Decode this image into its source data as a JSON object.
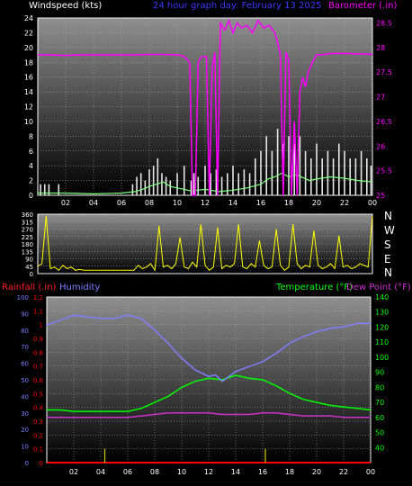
{
  "header": {
    "windspeed_label": "Windspeed (kts)",
    "graph_day": "24 hour graph day:  February 13 2025",
    "barometer_label": "Barometer (.in)"
  },
  "legend_bottom": {
    "rainfall_label": "Rainfall (.in)",
    "humidity_label": "Humidity",
    "temperature_label": "Temperature (°F)",
    "dewpoint_label": "Dew Point (°F)"
  },
  "compass": [
    "N",
    "W",
    "S",
    "E",
    "N"
  ],
  "colors": {
    "windspeed": "#ffffff",
    "windgust": "#e6e6e6",
    "windavg": "#7dff7d",
    "barometer": "#ff00ff",
    "direction": "#ffff00",
    "humidity": "#7f7fff",
    "temperature": "#00ff00",
    "dewpoint": "#cc33cc",
    "rainfall": "#ff0000",
    "left_axis": "#ffffff",
    "right_axis_baro": "#ff00ff",
    "right_axis_temp": "#00ff00",
    "left_axis_hum": "#7f7fff",
    "left_axis_rain": "#ff0000"
  },
  "chart_data": [
    {
      "type": "line",
      "name": "wind-and-barometer",
      "x_ticks": [
        "02",
        "04",
        "06",
        "08",
        "10",
        "12",
        "14",
        "16",
        "18",
        "20",
        "22",
        "00"
      ],
      "xlim": [
        0,
        24
      ],
      "left_axis": {
        "title": "Windspeed (kts)",
        "ticks": [
          0,
          2,
          4,
          6,
          8,
          10,
          12,
          14,
          16,
          18,
          20,
          22,
          24
        ],
        "ylim": [
          0,
          24
        ]
      },
      "right_axis": {
        "title": "Barometer (.in)",
        "ticks": [
          "25",
          "25.5",
          "26",
          "26.5",
          "27",
          "27.5",
          "28",
          "28.5"
        ],
        "ylim": [
          25,
          28.6
        ]
      },
      "series": [
        {
          "key": "barometer",
          "axis": "right",
          "x": [
            0,
            1,
            2,
            3,
            4,
            5,
            6,
            7,
            8,
            9,
            10,
            10.5,
            10.9,
            11.1,
            11.3,
            11.5,
            11.7,
            11.9,
            12.1,
            12.3,
            12.5,
            12.7,
            12.9,
            13.1,
            13.4,
            13.7,
            14.0,
            14.3,
            14.6,
            15.0,
            15.4,
            15.8,
            16.2,
            16.6,
            17.0,
            17.2,
            17.4,
            17.6,
            17.8,
            18.0,
            18.2,
            18.4,
            18.6,
            18.8,
            19.0,
            19.2,
            19.4,
            19.7,
            20.0,
            20.5,
            21,
            22,
            23,
            24
          ],
          "values": [
            27.85,
            27.85,
            27.84,
            27.85,
            27.85,
            27.85,
            27.85,
            27.85,
            27.86,
            27.86,
            27.85,
            27.82,
            27.7,
            25.0,
            25.0,
            27.7,
            27.8,
            27.82,
            27.82,
            25.0,
            27.6,
            27.9,
            25.0,
            28.5,
            28.35,
            28.55,
            28.3,
            28.5,
            28.4,
            28.45,
            28.3,
            28.55,
            28.4,
            28.45,
            28.3,
            28.1,
            27.85,
            25.0,
            27.9,
            27.75,
            25.0,
            26.5,
            25.0,
            27.1,
            27.4,
            27.2,
            27.5,
            27.7,
            27.85,
            27.86,
            27.88,
            27.88,
            27.87,
            27.86
          ]
        },
        {
          "key": "windspeed",
          "axis": "left",
          "x": [
            0.2,
            0.5,
            0.8,
            1.5,
            6.8,
            7.1,
            7.4,
            7.7,
            8.0,
            8.3,
            8.6,
            8.9,
            9.2,
            9.5,
            10.0,
            10.5,
            11.0,
            11.2,
            11.5,
            12.0,
            12.4,
            12.8,
            13.2,
            13.6,
            14.0,
            14.4,
            14.8,
            15.2,
            15.6,
            16.0,
            16.4,
            16.8,
            17.2,
            17.6,
            18.0,
            18.4,
            18.8,
            19.2,
            19.6,
            20.0,
            20.4,
            20.8,
            21.2,
            21.6,
            22.0,
            22.4,
            22.8,
            23.2,
            23.6,
            23.9
          ],
          "values": [
            1.5,
            1.5,
            1.5,
            1.5,
            1.5,
            2.5,
            3,
            2,
            3.5,
            4,
            5,
            3,
            2.5,
            2,
            3,
            4,
            2,
            3,
            2.5,
            4,
            3,
            3.5,
            2.5,
            3,
            4,
            3,
            3.5,
            3,
            5,
            6,
            8,
            6,
            9,
            7,
            8,
            7,
            8,
            6,
            5,
            7,
            5,
            6,
            5,
            7,
            6,
            5,
            5,
            6,
            5,
            4
          ]
        },
        {
          "key": "windavg",
          "axis": "left",
          "x": [
            0,
            2,
            4,
            6,
            7,
            7.5,
            8,
            8.5,
            9,
            9.5,
            10,
            11,
            12,
            13,
            14,
            15,
            16,
            16.5,
            17,
            17.5,
            18,
            18.5,
            19,
            19.5,
            20,
            21,
            22,
            23,
            24
          ],
          "values": [
            0.3,
            0.3,
            0.2,
            0.3,
            0.5,
            0.8,
            1.2,
            1.5,
            1.8,
            1.2,
            1.0,
            0.6,
            0.8,
            0.5,
            0.7,
            1.0,
            1.5,
            2.2,
            2.5,
            3.0,
            2.5,
            2.8,
            2.4,
            2.0,
            2.2,
            2.5,
            2.3,
            2.0,
            1.8
          ]
        }
      ]
    },
    {
      "type": "line",
      "name": "wind-direction",
      "xlim": [
        0,
        24
      ],
      "left_axis": {
        "ticks": [
          0,
          45,
          90,
          135,
          180,
          225,
          270,
          315,
          360
        ],
        "ylim": [
          0,
          360
        ]
      },
      "series": [
        {
          "key": "direction",
          "x": [
            0.0,
            0.3,
            0.6,
            0.9,
            1.2,
            1.5,
            1.8,
            2.1,
            2.4,
            2.7,
            3.0,
            3.3,
            3.6,
            3.9,
            4.2,
            4.5,
            4.8,
            5.1,
            5.4,
            5.7,
            6.0,
            6.3,
            6.6,
            6.9,
            7.2,
            7.5,
            7.8,
            8.1,
            8.4,
            8.7,
            9.0,
            9.3,
            9.6,
            9.9,
            10.2,
            10.5,
            10.8,
            11.1,
            11.4,
            11.7,
            12.0,
            12.3,
            12.6,
            12.9,
            13.2,
            13.5,
            13.8,
            14.1,
            14.4,
            14.7,
            15.0,
            15.3,
            15.6,
            15.9,
            16.2,
            16.5,
            16.8,
            17.1,
            17.4,
            17.7,
            18.0,
            18.3,
            18.6,
            18.9,
            19.2,
            19.5,
            19.8,
            20.1,
            20.4,
            20.7,
            21.0,
            21.3,
            21.6,
            21.9,
            22.2,
            22.5,
            22.8,
            23.1,
            23.4,
            23.7,
            24.0
          ],
          "values": [
            45,
            60,
            350,
            30,
            40,
            20,
            50,
            30,
            40,
            20,
            25,
            20,
            20,
            20,
            20,
            20,
            20,
            20,
            20,
            20,
            20,
            20,
            20,
            20,
            50,
            30,
            40,
            60,
            20,
            290,
            40,
            50,
            30,
            60,
            220,
            40,
            30,
            70,
            40,
            300,
            50,
            20,
            40,
            280,
            30,
            50,
            40,
            60,
            300,
            40,
            30,
            60,
            40,
            200,
            50,
            30,
            40,
            270,
            50,
            20,
            40,
            300,
            60,
            30,
            50,
            40,
            260,
            50,
            30,
            40,
            60,
            30,
            230,
            40,
            50,
            30,
            40,
            60,
            50,
            40,
            350
          ]
        }
      ]
    },
    {
      "type": "line",
      "name": "temperature-humidity-rain",
      "x_ticks": [
        "02",
        "04",
        "06",
        "08",
        "10",
        "12",
        "14",
        "16",
        "18",
        "20",
        "22",
        "00"
      ],
      "xlim": [
        0,
        24
      ],
      "left_axis_humidity": {
        "title": "Humidity",
        "ticks": [
          0,
          10,
          20,
          30,
          40,
          50,
          60,
          70,
          80,
          90,
          100
        ],
        "ylim": [
          0,
          100
        ]
      },
      "left_axis_rain": {
        "title": "Rainfall (.in)",
        "ticks": [
          "0",
          "0.1",
          "0.2",
          "0.3",
          "0.4",
          "0.5",
          "0.6",
          "0.7",
          "0.8",
          "0.9",
          "1",
          "1.1",
          "1.2"
        ],
        "ylim": [
          0,
          1.2
        ]
      },
      "right_axis": {
        "title": "Temperature (°F)",
        "ticks": [
          40,
          50,
          60,
          70,
          80,
          90,
          100,
          110,
          120,
          130,
          140
        ],
        "ylim": [
          30,
          140
        ]
      },
      "series": [
        {
          "key": "humidity",
          "axis": "humidity",
          "x": [
            0,
            1,
            2,
            3,
            4,
            5,
            6,
            7,
            8,
            9,
            10,
            11,
            12,
            12.5,
            13,
            13.5,
            14,
            15,
            16,
            17,
            18,
            19,
            20,
            21,
            22,
            23,
            24
          ],
          "values": [
            83,
            86,
            89,
            88,
            87,
            87,
            89,
            87,
            80,
            72,
            63,
            56,
            52,
            53,
            49,
            52,
            55,
            58,
            61,
            66,
            72,
            76,
            79,
            81,
            82,
            84,
            84
          ]
        },
        {
          "key": "temperature",
          "axis": "temperature",
          "x": [
            0,
            1,
            2,
            3,
            4,
            5,
            6,
            7,
            8,
            9,
            10,
            11,
            12,
            13,
            14,
            15,
            16,
            17,
            18,
            19,
            20,
            21,
            22,
            23,
            24
          ],
          "values": [
            65,
            65,
            64,
            64,
            64,
            64,
            64,
            66,
            70,
            74,
            80,
            84,
            86,
            85,
            88,
            86,
            85,
            81,
            76,
            72,
            70,
            68,
            67,
            66,
            65
          ]
        },
        {
          "key": "dewpoint",
          "axis": "temperature",
          "x": [
            0,
            1,
            2,
            3,
            4,
            5,
            6,
            7,
            8,
            9,
            10,
            11,
            12,
            13,
            14,
            15,
            16,
            17,
            18,
            19,
            20,
            21,
            22,
            23,
            24
          ],
          "values": [
            60,
            60,
            60,
            60,
            60,
            60,
            60,
            61,
            62,
            63,
            63,
            63,
            63,
            62,
            62,
            62,
            63,
            63,
            62,
            61,
            61,
            61,
            60,
            60,
            60
          ]
        },
        {
          "key": "rainfall",
          "axis": "rain",
          "x": [
            0,
            24
          ],
          "values": [
            0,
            0
          ]
        }
      ],
      "rain_spikes": [
        {
          "x": 4.3,
          "value": 0.1
        },
        {
          "x": 16.2,
          "value": 0.1
        }
      ]
    }
  ]
}
